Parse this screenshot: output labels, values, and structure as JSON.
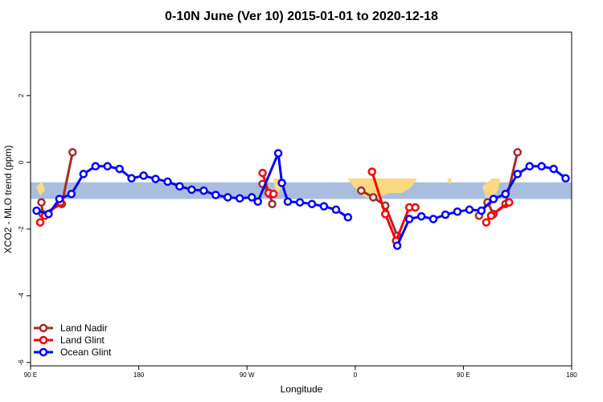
{
  "colors": {
    "band": "#a9bedf",
    "land": "#fcd980",
    "land_nadir": "#a52a2a",
    "land_glint": "#ff0000",
    "ocean_glint": "#0000ff"
  },
  "chart_data": {
    "type": "line",
    "title": "0-10N June (Ver 10)   2015-01-01 to 2020-12-18",
    "xlabel": "Longitude",
    "ylabel": "XCO2 - MLO trend (ppm)",
    "xlim": [
      -90,
      360
    ],
    "ylim": [
      -6.1,
      3.9
    ],
    "x_ticks": [
      {
        "value": -90,
        "label": "90 E"
      },
      {
        "value": 0,
        "label": "180"
      },
      {
        "value": 90,
        "label": "90 W"
      },
      {
        "value": 180,
        "label": "0"
      },
      {
        "value": 270,
        "label": "90 E"
      },
      {
        "value": 360,
        "label": "180"
      }
    ],
    "y_ticks": [
      {
        "value": -6,
        "label": "-6"
      },
      {
        "value": -4,
        "label": "-4"
      },
      {
        "value": -2,
        "label": "-2"
      },
      {
        "value": 0,
        "label": "0"
      },
      {
        "value": 2,
        "label": "2"
      }
    ],
    "band": {
      "ymin": -1.1,
      "ymax": -0.6
    },
    "legend_position": "bottom-left",
    "series": [
      {
        "name": "Land Nadir",
        "color": "#a52a2a",
        "segments": [
          [
            [
              -81,
              -1.2
            ],
            [
              -80,
              -1.55
            ],
            [
              -64,
              -1.25
            ],
            [
              -55,
              0.3
            ]
          ],
          [
            [
              103,
              -0.65
            ],
            [
              109,
              -0.95
            ],
            [
              111,
              -1.25
            ]
          ],
          [
            [
              185,
              -0.85
            ],
            [
              195,
              -1.05
            ],
            [
              205,
              -1.3
            ],
            [
              215,
              -2.2
            ]
          ],
          [
            [
              283,
              -1.6
            ],
            [
              290,
              -1.2
            ],
            [
              295,
              -1.55
            ],
            [
              305,
              -1.25
            ],
            [
              315,
              0.3
            ]
          ]
        ]
      },
      {
        "name": "Land Glint",
        "color": "#ff0000",
        "segments": [
          [
            [
              -82,
              -1.8
            ],
            [
              -78,
              -1.6
            ],
            [
              -65,
              -1.2
            ]
          ],
          [
            [
              103,
              -0.32
            ],
            [
              108,
              -0.92
            ],
            [
              112,
              -0.95
            ]
          ],
          [
            [
              194,
              -0.28
            ],
            [
              205,
              -1.55
            ],
            [
              214,
              -2.35
            ],
            [
              225,
              -1.35
            ],
            [
              230,
              -1.35
            ]
          ],
          [
            [
              289,
              -1.8
            ],
            [
              293,
              -1.6
            ],
            [
              308,
              -1.2
            ]
          ]
        ]
      },
      {
        "name": "Ocean Glint",
        "color": "#0000ff",
        "segments": [
          [
            [
              -85,
              -1.45
            ],
            [
              -75,
              -1.55
            ],
            [
              -66,
              -1.1
            ],
            [
              -56,
              -0.95
            ],
            [
              -46,
              -0.35
            ],
            [
              -36,
              -0.12
            ],
            [
              -26,
              -0.12
            ],
            [
              -16,
              -0.2
            ],
            [
              -6,
              -0.48
            ],
            [
              4,
              -0.4
            ],
            [
              14,
              -0.5
            ],
            [
              24,
              -0.58
            ],
            [
              34,
              -0.72
            ],
            [
              44,
              -0.82
            ],
            [
              54,
              -0.85
            ],
            [
              64,
              -0.98
            ],
            [
              74,
              -1.05
            ],
            [
              84,
              -1.08
            ],
            [
              94,
              -1.05
            ],
            [
              99,
              -1.18
            ],
            [
              116,
              0.27
            ],
            [
              119,
              -0.62
            ],
            [
              124,
              -1.18
            ],
            [
              134,
              -1.2
            ],
            [
              144,
              -1.25
            ],
            [
              154,
              -1.32
            ],
            [
              164,
              -1.42
            ],
            [
              174,
              -1.65
            ]
          ],
          [
            [
              215,
              -2.5
            ],
            [
              225,
              -1.7
            ],
            [
              235,
              -1.62
            ],
            [
              245,
              -1.7
            ],
            [
              255,
              -1.57
            ],
            [
              265,
              -1.48
            ],
            [
              275,
              -1.42
            ],
            [
              285,
              -1.45
            ],
            [
              295,
              -1.1
            ],
            [
              305,
              -0.95
            ],
            [
              315,
              -0.35
            ],
            [
              325,
              -0.12
            ],
            [
              335,
              -0.12
            ],
            [
              345,
              -0.2
            ],
            [
              355,
              -0.48
            ]
          ]
        ]
      }
    ]
  }
}
